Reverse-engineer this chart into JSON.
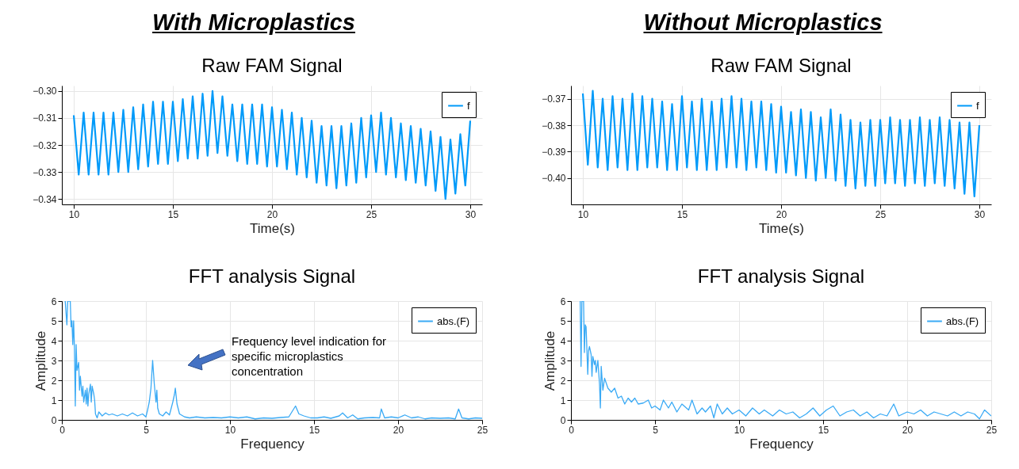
{
  "chart_data": [
    {
      "type": "line",
      "title": "Raw FAM Signal",
      "xlabel": "Time(s)",
      "annotations": [
        "With Microplastics"
      ],
      "legend": "top right",
      "grid": true,
      "xlim": [
        9.4,
        30.6
      ],
      "xticks": [
        10,
        15,
        20,
        25,
        30
      ],
      "ylim": [
        -0.342,
        -0.298
      ],
      "yticks": [
        {
          "value": -0.34,
          "label": "−0.34"
        },
        {
          "value": -0.33,
          "label": "−0.33"
        },
        {
          "value": -0.32,
          "label": "−0.32"
        },
        {
          "value": -0.31,
          "label": "−0.31"
        },
        {
          "value": -0.3,
          "label": "−0.30"
        }
      ],
      "series": [
        {
          "name": "f",
          "color": "#009af9",
          "x": [
            10,
            10.25,
            10.5,
            10.75,
            11,
            11.25,
            11.5,
            11.75,
            12,
            12.25,
            12.5,
            12.75,
            13,
            13.25,
            13.5,
            13.75,
            14,
            14.25,
            14.5,
            14.75,
            15,
            15.25,
            15.5,
            15.75,
            16,
            16.25,
            16.5,
            16.75,
            17,
            17.25,
            17.5,
            17.75,
            18,
            18.25,
            18.5,
            18.75,
            19,
            19.25,
            19.5,
            19.75,
            20,
            20.25,
            20.5,
            20.75,
            21,
            21.25,
            21.5,
            21.75,
            22,
            22.25,
            22.5,
            22.75,
            23,
            23.25,
            23.5,
            23.75,
            24,
            24.25,
            24.5,
            24.75,
            25,
            25.25,
            25.5,
            25.75,
            26,
            26.25,
            26.5,
            26.75,
            27,
            27.25,
            27.5,
            27.75,
            28,
            28.25,
            28.5,
            28.75,
            29,
            29.25,
            29.5,
            29.75,
            30
          ],
          "values": [
            -0.309,
            -0.331,
            -0.308,
            -0.331,
            -0.308,
            -0.331,
            -0.308,
            -0.331,
            -0.308,
            -0.33,
            -0.307,
            -0.33,
            -0.306,
            -0.329,
            -0.305,
            -0.328,
            -0.304,
            -0.327,
            -0.304,
            -0.327,
            -0.304,
            -0.326,
            -0.303,
            -0.325,
            -0.302,
            -0.325,
            -0.301,
            -0.324,
            -0.3,
            -0.323,
            -0.302,
            -0.324,
            -0.305,
            -0.326,
            -0.305,
            -0.327,
            -0.305,
            -0.327,
            -0.305,
            -0.328,
            -0.306,
            -0.328,
            -0.307,
            -0.329,
            -0.308,
            -0.331,
            -0.31,
            -0.332,
            -0.311,
            -0.334,
            -0.313,
            -0.335,
            -0.313,
            -0.336,
            -0.313,
            -0.335,
            -0.312,
            -0.334,
            -0.31,
            -0.332,
            -0.309,
            -0.33,
            -0.308,
            -0.331,
            -0.31,
            -0.332,
            -0.312,
            -0.333,
            -0.313,
            -0.334,
            -0.314,
            -0.335,
            -0.315,
            -0.337,
            -0.317,
            -0.34,
            -0.318,
            -0.338,
            -0.316,
            -0.335,
            -0.311
          ]
        }
      ]
    },
    {
      "type": "line",
      "title": "Raw FAM Signal",
      "xlabel": "Time(s)",
      "annotations": [
        "Without Microplastics"
      ],
      "legend": "top right",
      "grid": true,
      "xlim": [
        9.4,
        30.6
      ],
      "xticks": [
        10,
        15,
        20,
        25,
        30
      ],
      "ylim": [
        -0.41,
        -0.365
      ],
      "yticks": [
        {
          "value": -0.4,
          "label": "−0.40"
        },
        {
          "value": -0.39,
          "label": "−0.39"
        },
        {
          "value": -0.38,
          "label": "−0.38"
        },
        {
          "value": -0.37,
          "label": "−0.37"
        }
      ],
      "series": [
        {
          "name": "f",
          "color": "#009af9",
          "x": [
            10,
            10.25,
            10.5,
            10.75,
            11,
            11.25,
            11.5,
            11.75,
            12,
            12.25,
            12.5,
            12.75,
            13,
            13.25,
            13.5,
            13.75,
            14,
            14.25,
            14.5,
            14.75,
            15,
            15.25,
            15.5,
            15.75,
            16,
            16.25,
            16.5,
            16.75,
            17,
            17.25,
            17.5,
            17.75,
            18,
            18.25,
            18.5,
            18.75,
            19,
            19.25,
            19.5,
            19.75,
            20,
            20.25,
            20.5,
            20.75,
            21,
            21.25,
            21.5,
            21.75,
            22,
            22.25,
            22.5,
            22.75,
            23,
            23.25,
            23.5,
            23.75,
            24,
            24.25,
            24.5,
            24.75,
            25,
            25.25,
            25.5,
            25.75,
            26,
            26.25,
            26.5,
            26.75,
            27,
            27.25,
            27.5,
            27.75,
            28,
            28.25,
            28.5,
            28.75,
            29,
            29.25,
            29.5,
            29.75,
            30
          ],
          "values": [
            -0.368,
            -0.395,
            -0.367,
            -0.396,
            -0.37,
            -0.397,
            -0.369,
            -0.396,
            -0.37,
            -0.397,
            -0.368,
            -0.397,
            -0.369,
            -0.396,
            -0.37,
            -0.396,
            -0.371,
            -0.397,
            -0.372,
            -0.397,
            -0.369,
            -0.396,
            -0.371,
            -0.397,
            -0.37,
            -0.397,
            -0.371,
            -0.397,
            -0.37,
            -0.396,
            -0.369,
            -0.396,
            -0.37,
            -0.397,
            -0.371,
            -0.396,
            -0.371,
            -0.397,
            -0.372,
            -0.398,
            -0.373,
            -0.398,
            -0.375,
            -0.399,
            -0.374,
            -0.4,
            -0.375,
            -0.401,
            -0.377,
            -0.4,
            -0.374,
            -0.401,
            -0.376,
            -0.403,
            -0.378,
            -0.404,
            -0.379,
            -0.403,
            -0.378,
            -0.403,
            -0.378,
            -0.402,
            -0.377,
            -0.402,
            -0.378,
            -0.403,
            -0.378,
            -0.402,
            -0.377,
            -0.403,
            -0.378,
            -0.402,
            -0.377,
            -0.403,
            -0.378,
            -0.404,
            -0.379,
            -0.406,
            -0.379,
            -0.407,
            -0.38
          ]
        }
      ]
    },
    {
      "type": "line",
      "title": "FFT analysis Signal",
      "xlabel": "Frequency",
      "ylabel": "Amplitude",
      "legend": "top right",
      "grid": true,
      "annotations": [
        "Frequency level indication for specific microplastics concentration"
      ],
      "xlim": [
        0,
        25
      ],
      "xticks": [
        0,
        5,
        10,
        15,
        20,
        25
      ],
      "ylim": [
        0,
        6
      ],
      "yticks": [
        0,
        1,
        2,
        3,
        4,
        5,
        6
      ],
      "series": [
        {
          "name": "abs.(F)",
          "color": "#3aaaf5",
          "x": [
            0.2,
            0.3,
            0.35,
            0.5,
            0.55,
            0.6,
            0.65,
            0.7,
            0.75,
            0.8,
            0.85,
            0.9,
            1.0,
            1.05,
            1.1,
            1.2,
            1.25,
            1.3,
            1.4,
            1.45,
            1.5,
            1.55,
            1.6,
            1.7,
            1.75,
            1.8,
            1.9,
            1.95,
            2.0,
            2.1,
            2.2,
            2.4,
            2.6,
            2.8,
            3.0,
            3.3,
            3.6,
            3.9,
            4.2,
            4.5,
            4.8,
            5.0,
            5.1,
            5.2,
            5.3,
            5.4,
            5.5,
            5.6,
            5.65,
            5.7,
            5.8,
            6.0,
            6.2,
            6.4,
            6.6,
            6.7,
            6.75,
            6.85,
            7.0,
            7.3,
            7.6,
            8.0,
            8.5,
            9.0,
            9.5,
            10.0,
            10.5,
            11.0,
            11.5,
            12.0,
            12.5,
            13.0,
            13.5,
            13.9,
            14.1,
            14.4,
            14.8,
            15.2,
            15.6,
            16.0,
            16.5,
            16.7,
            17.0,
            17.3,
            17.6,
            18.0,
            18.5,
            18.9,
            19.0,
            19.2,
            19.6,
            20.0,
            20.4,
            20.8,
            21.2,
            21.6,
            22.0,
            22.5,
            23.0,
            23.4,
            23.6,
            23.8,
            24.2,
            24.6,
            25.0
          ],
          "values": [
            6,
            4.8,
            6,
            6,
            4.7,
            5,
            3.8,
            5,
            3.6,
            0.7,
            3.8,
            2.5,
            2.9,
            1.5,
            2.2,
            1.2,
            1.7,
            0.9,
            1.5,
            0.8,
            1.6,
            0.7,
            1.3,
            1.8,
            0.9,
            1.7,
            1.3,
            1.0,
            0.3,
            0.1,
            0.4,
            0.2,
            0.35,
            0.25,
            0.3,
            0.2,
            0.3,
            0.2,
            0.35,
            0.2,
            0.3,
            0.15,
            0.5,
            0.9,
            1.6,
            3.0,
            1.8,
            0.9,
            1.5,
            0.6,
            0.3,
            0.2,
            0.4,
            0.25,
            0.9,
            1.3,
            1.6,
            0.8,
            0.3,
            0.15,
            0.1,
            0.15,
            0.1,
            0.12,
            0.1,
            0.15,
            0.1,
            0.15,
            0.05,
            0.1,
            0.08,
            0.12,
            0.15,
            0.7,
            0.3,
            0.2,
            0.1,
            0.1,
            0.15,
            0.08,
            0.2,
            0.35,
            0.1,
            0.25,
            0.05,
            0.1,
            0.12,
            0.1,
            0.55,
            0.1,
            0.15,
            0.1,
            0.25,
            0.1,
            0.15,
            0.05,
            0.1,
            0.08,
            0.1,
            0.05,
            0.55,
            0.1,
            0.05,
            0.1,
            0.08
          ]
        }
      ]
    },
    {
      "type": "line",
      "title": "FFT analysis Signal",
      "xlabel": "Frequency",
      "ylabel": "Amplitude",
      "legend": "top right",
      "grid": true,
      "xlim": [
        0,
        25
      ],
      "xticks": [
        0,
        5,
        10,
        15,
        20,
        25
      ],
      "ylim": [
        0,
        6
      ],
      "yticks": [
        0,
        1,
        2,
        3,
        4,
        5,
        6
      ],
      "series": [
        {
          "name": "abs.(F)",
          "color": "#3aaaf5",
          "x": [
            0.55,
            0.6,
            0.65,
            0.75,
            0.8,
            0.85,
            0.9,
            1.0,
            1.05,
            1.1,
            1.2,
            1.25,
            1.3,
            1.4,
            1.45,
            1.5,
            1.6,
            1.7,
            1.75,
            1.8,
            1.9,
            2.0,
            2.2,
            2.4,
            2.6,
            2.8,
            3.0,
            3.2,
            3.4,
            3.6,
            3.8,
            4.0,
            4.3,
            4.6,
            4.8,
            5.0,
            5.3,
            5.5,
            5.8,
            6.0,
            6.3,
            6.6,
            7.0,
            7.2,
            7.5,
            7.8,
            8.0,
            8.3,
            8.5,
            8.7,
            9.0,
            9.3,
            9.6,
            10.0,
            10.4,
            10.8,
            11.2,
            11.5,
            12.0,
            12.4,
            12.8,
            13.2,
            13.6,
            14.0,
            14.4,
            14.8,
            15.2,
            15.6,
            16.0,
            16.4,
            16.8,
            17.2,
            17.6,
            18.0,
            18.4,
            18.8,
            19.2,
            19.5,
            20.0,
            20.4,
            20.8,
            21.2,
            21.6,
            22.0,
            22.4,
            22.8,
            23.2,
            23.6,
            24.0,
            24.3,
            24.6,
            25.0
          ],
          "values": [
            6,
            2.7,
            6,
            6,
            3.4,
            4.8,
            4.7,
            2.3,
            3.5,
            3.7,
            3.3,
            2.2,
            3.2,
            2.8,
            3.0,
            2.4,
            3.0,
            1.8,
            0.6,
            2.7,
            1.5,
            2.1,
            1.6,
            1.4,
            1.6,
            1.1,
            1.2,
            0.8,
            1.1,
            0.9,
            1.1,
            0.8,
            0.85,
            1.0,
            0.6,
            0.7,
            0.5,
            1.0,
            0.6,
            0.9,
            0.4,
            0.8,
            0.5,
            1.0,
            0.3,
            0.6,
            0.4,
            0.7,
            0.1,
            0.8,
            0.3,
            0.6,
            0.3,
            0.5,
            0.2,
            0.6,
            0.3,
            0.5,
            0.2,
            0.5,
            0.3,
            0.4,
            0.1,
            0.3,
            0.6,
            0.2,
            0.5,
            0.7,
            0.2,
            0.4,
            0.5,
            0.2,
            0.4,
            0.1,
            0.3,
            0.2,
            0.8,
            0.2,
            0.4,
            0.3,
            0.5,
            0.2,
            0.4,
            0.3,
            0.2,
            0.4,
            0.2,
            0.4,
            0.3,
            0.05,
            0.5,
            0.2
          ]
        }
      ]
    }
  ]
}
